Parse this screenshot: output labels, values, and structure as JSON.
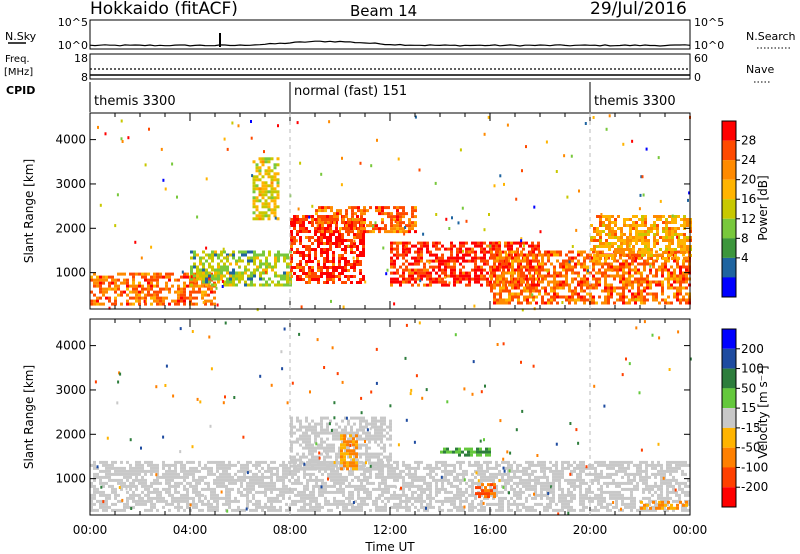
{
  "header": {
    "station": "Hokkaido (fitACF)",
    "beam": "Beam 14",
    "date": "29/Jul/2016"
  },
  "top_panels": {
    "nsky_label": "N.Sky",
    "nsky_ticks": [
      "10^5",
      "10^0"
    ],
    "nsearch_label": "N.Search",
    "nsearch_ticks": [
      "10^5",
      "10^0"
    ],
    "freq_label_1": "Freq.",
    "freq_label_2": "[MHz]",
    "freq_ticks": [
      "18",
      "8"
    ],
    "nave_label": "Nave",
    "nave_ticks": [
      "60",
      "0"
    ],
    "cpid_label": "CPID",
    "cpid_segments": [
      {
        "label": "themis 3300",
        "start_hour": 0,
        "end_hour": 8
      },
      {
        "label": "normal (fast) 151",
        "start_hour": 8,
        "end_hour": 20
      },
      {
        "label": "themis 3300",
        "start_hour": 20,
        "end_hour": 24
      }
    ]
  },
  "power_colorbar": {
    "title": "Power [dB]",
    "ticks": [
      "28",
      "24",
      "20",
      "16",
      "12",
      "8",
      "4"
    ],
    "colors": [
      "#ff0000",
      "#ff4a00",
      "#ff8a00",
      "#ffb400",
      "#c8c800",
      "#78c83c",
      "#3c963c",
      "#1e64a0",
      "#0000ff"
    ]
  },
  "velocity_colorbar": {
    "title": "Velocity [m s⁻¹]",
    "ticks": [
      "200",
      "100",
      "50",
      "15",
      "-15",
      "-50",
      "-100",
      "-200"
    ],
    "colors": [
      "#0000ff",
      "#1e4ba0",
      "#2d7d3c",
      "#64c83c",
      "#c8c8c8",
      "#ffb400",
      "#ff8000",
      "#ff4000",
      "#ff0000"
    ]
  },
  "chart_data": {
    "type": "heatmap",
    "title": "Hokkaido (fitACF) Beam 14 29/Jul/2016",
    "xlabel": "Time UT",
    "ylabel": "Slant Range [km]",
    "x_ticks": [
      "00:00",
      "04:00",
      "08:00",
      "12:00",
      "16:00",
      "20:00",
      "00:00"
    ],
    "y_ticks": [
      "1000",
      "2000",
      "3000",
      "4000"
    ],
    "xlim_hours": [
      0,
      24
    ],
    "ylim_km": [
      180,
      4600
    ],
    "power_blobs": [
      {
        "t0": 0,
        "t1": 5,
        "r0": 300,
        "r1": 1000,
        "level": 24
      },
      {
        "t0": 4,
        "t1": 8,
        "r0": 700,
        "r1": 1500,
        "level": 12
      },
      {
        "t0": 8,
        "t1": 11,
        "r0": 800,
        "r1": 2300,
        "level": 28
      },
      {
        "t0": 9,
        "t1": 13,
        "r0": 1900,
        "r1": 2500,
        "level": 24
      },
      {
        "t0": 12,
        "t1": 18,
        "r0": 700,
        "r1": 1700,
        "level": 28
      },
      {
        "t0": 16,
        "t1": 24,
        "r0": 300,
        "r1": 1500,
        "level": 24
      },
      {
        "t0": 20,
        "t1": 24,
        "r0": 1300,
        "r1": 2300,
        "level": 20
      },
      {
        "t0": 6.5,
        "t1": 7.5,
        "r0": 2200,
        "r1": 3600,
        "level": 16
      }
    ],
    "velocity_blobs": [
      {
        "t0": 0,
        "t1": 24,
        "r0": 300,
        "r1": 1400,
        "v": 0
      },
      {
        "t0": 8,
        "t1": 12,
        "r0": 1200,
        "r1": 2400,
        "v": 0
      },
      {
        "t0": 10,
        "t1": 10.7,
        "r0": 1200,
        "r1": 2000,
        "v": -50
      },
      {
        "t0": 15.4,
        "t1": 16.2,
        "r0": 600,
        "r1": 900,
        "v": -100
      },
      {
        "t0": 14,
        "t1": 16,
        "r0": 1500,
        "r1": 1700,
        "v": 50
      },
      {
        "t0": 22,
        "t1": 24,
        "r0": 300,
        "r1": 500,
        "v": -50
      }
    ]
  }
}
